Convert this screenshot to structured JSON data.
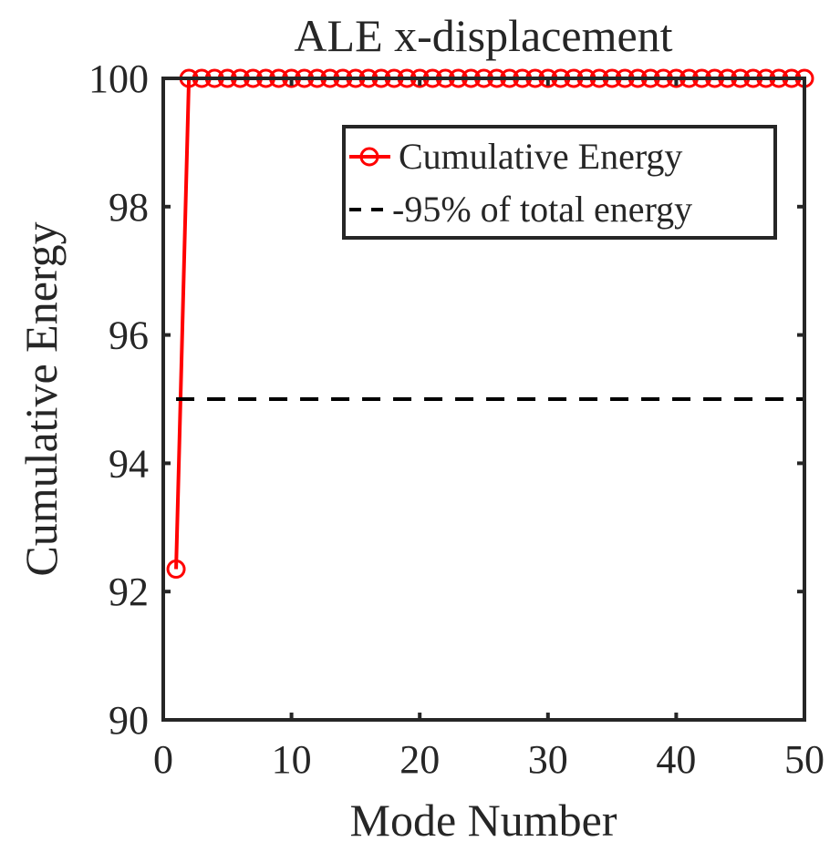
{
  "chart_data": {
    "type": "line",
    "title": "ALE x-displacement",
    "xlabel": "Mode Number",
    "ylabel": "Cumulative Energy",
    "xlim": [
      0,
      50
    ],
    "ylim": [
      90,
      100
    ],
    "xticks": [
      0,
      10,
      20,
      30,
      40,
      50
    ],
    "yticks": [
      90,
      92,
      94,
      96,
      98,
      100
    ],
    "grid": false,
    "legend_position": "top-right",
    "series": [
      {
        "name": "Cumulative Energy",
        "color": "#ff0000",
        "marker": "circle",
        "line_style": "solid",
        "x": [
          1,
          2,
          3,
          4,
          5,
          6,
          7,
          8,
          9,
          10,
          11,
          12,
          13,
          14,
          15,
          16,
          17,
          18,
          19,
          20,
          21,
          22,
          23,
          24,
          25,
          26,
          27,
          28,
          29,
          30,
          31,
          32,
          33,
          34,
          35,
          36,
          37,
          38,
          39,
          40,
          41,
          42,
          43,
          44,
          45,
          46,
          47,
          48,
          49,
          50
        ],
        "values": [
          92.35,
          100,
          100,
          100,
          100,
          100,
          100,
          100,
          100,
          100,
          100,
          100,
          100,
          100,
          100,
          100,
          100,
          100,
          100,
          100,
          100,
          100,
          100,
          100,
          100,
          100,
          100,
          100,
          100,
          100,
          100,
          100,
          100,
          100,
          100,
          100,
          100,
          100,
          100,
          100,
          100,
          100,
          100,
          100,
          100,
          100,
          100,
          100,
          100,
          100
        ]
      },
      {
        "name": "-95% of total energy",
        "color": "#000000",
        "marker": "none",
        "line_style": "dashed",
        "x": [
          1,
          50
        ],
        "values": [
          95,
          95
        ]
      }
    ]
  }
}
